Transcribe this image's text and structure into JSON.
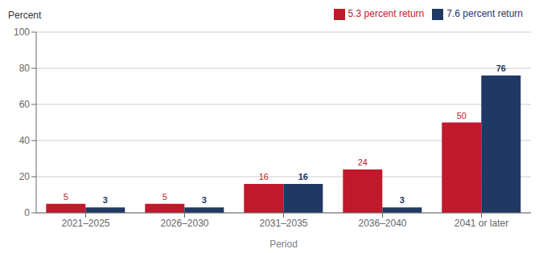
{
  "chart_data": {
    "type": "bar",
    "categories": [
      "2021–2025",
      "2026–2030",
      "2031–2035",
      "2036–2040",
      "2041 or later"
    ],
    "series": [
      {
        "name": "5.3 percent return",
        "color": "#C0192C",
        "values": [
          5,
          5,
          16,
          24,
          50
        ]
      },
      {
        "name": "7.6 percent return",
        "color": "#1F3864",
        "values": [
          3,
          3,
          16,
          3,
          76
        ]
      }
    ],
    "xlabel": "Period",
    "ylabel": "Percent",
    "ylim": [
      0,
      100
    ],
    "yticks": [
      0,
      20,
      40,
      60,
      80,
      100
    ],
    "grid": true,
    "data_labels": true,
    "legend": "upper right"
  }
}
